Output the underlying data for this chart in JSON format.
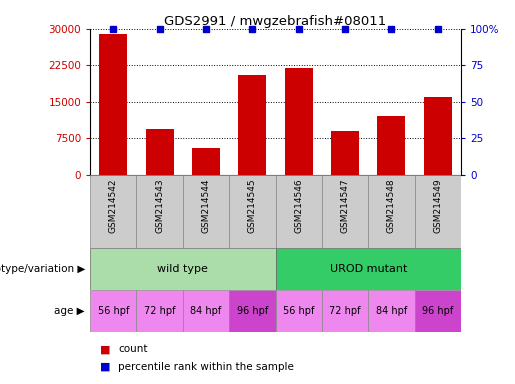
{
  "title": "GDS2991 / mwgzebrafish#08011",
  "samples": [
    "GSM214542",
    "GSM214543",
    "GSM214544",
    "GSM214545",
    "GSM214546",
    "GSM214547",
    "GSM214548",
    "GSM214549"
  ],
  "counts": [
    29000,
    9500,
    5500,
    20500,
    22000,
    9000,
    12000,
    16000
  ],
  "bar_color": "#cc0000",
  "dot_color": "#0000cc",
  "ylim_left": [
    0,
    30000
  ],
  "yticks_left": [
    0,
    7500,
    15000,
    22500,
    30000
  ],
  "ylim_right": [
    0,
    100
  ],
  "yticks_right": [
    0,
    25,
    50,
    75,
    100
  ],
  "genotype_groups": [
    {
      "label": "wild type",
      "start": 0,
      "end": 4,
      "color": "#aaddaa"
    },
    {
      "label": "UROD mutant",
      "start": 4,
      "end": 8,
      "color": "#33cc66"
    }
  ],
  "age_labels": [
    "56 hpf",
    "72 hpf",
    "84 hpf",
    "96 hpf",
    "56 hpf",
    "72 hpf",
    "84 hpf",
    "96 hpf"
  ],
  "age_highlight": [
    3,
    7
  ],
  "age_color_normal": "#ee88ee",
  "age_color_highlight": "#cc44cc",
  "sample_bg_color": "#cccccc",
  "genotype_label": "genotype/variation",
  "age_label": "age",
  "legend_count_color": "#cc0000",
  "legend_percentile_color": "#0000cc",
  "legend_count_text": "count",
  "legend_percentile_text": "percentile rank within the sample",
  "background_color": "#ffffff"
}
